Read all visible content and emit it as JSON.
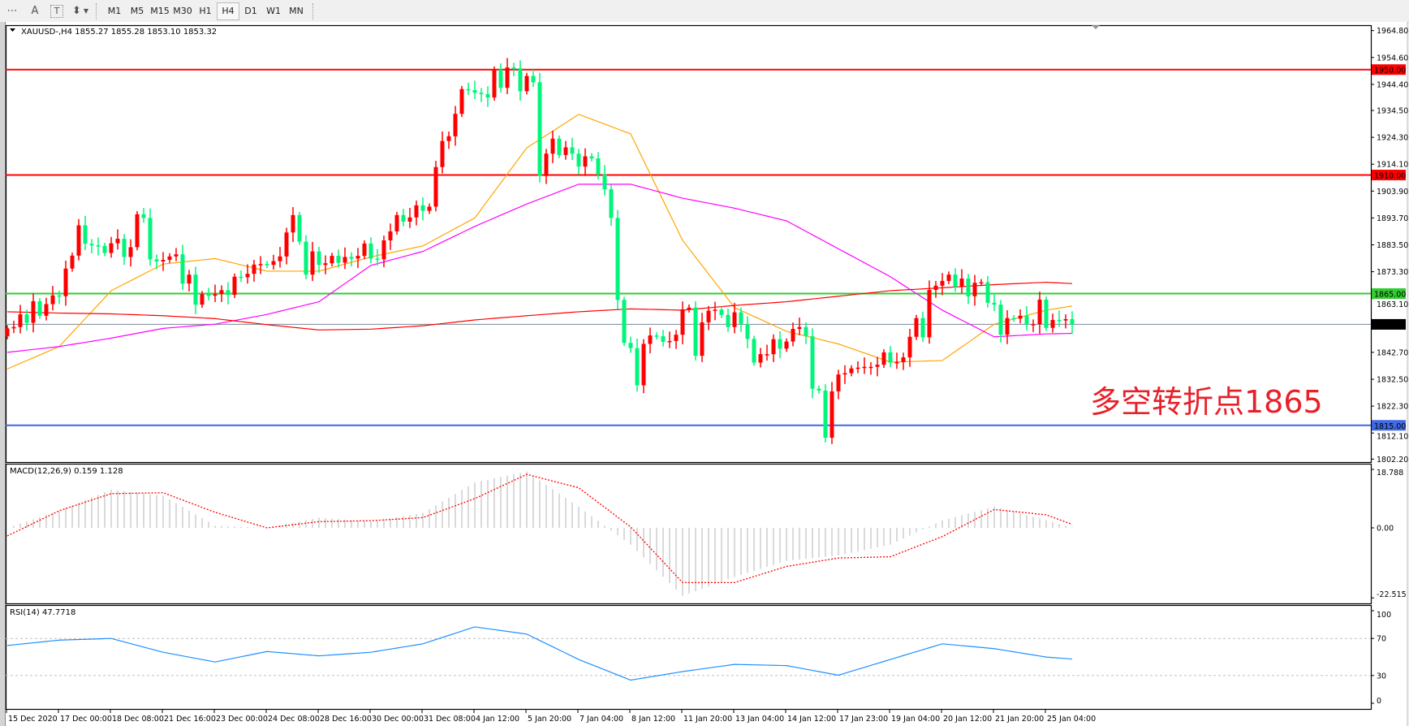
{
  "toolbar": {
    "icons": [
      "grid-properties-icon",
      "text-icon",
      "text-label-icon",
      "arrows-shapes-icon"
    ],
    "icon_glyphs": [
      "⋯",
      "A",
      "T",
      "⬍"
    ],
    "timeframes": [
      "M1",
      "M5",
      "M15",
      "M30",
      "H1",
      "H4",
      "D1",
      "W1",
      "MN"
    ],
    "active_timeframe": "H4"
  },
  "chart_data": [
    {
      "type": "candlestick",
      "symbol_header": "XAUUSD-,H4  1855.27 1855.28 1853.10 1853.32",
      "bull_color": "#ff0000",
      "bear_color": "#00f57a",
      "y_ticks": [
        "1964.80",
        "1954.60",
        "1944.40",
        "1934.50",
        "1924.30",
        "1914.10",
        "1903.90",
        "1893.70",
        "1883.50",
        "1873.30",
        "1863.10",
        "1842.70",
        "1832.50",
        "1822.30",
        "1812.10",
        "1802.20"
      ],
      "ylim": [
        1802.2,
        1964.8
      ],
      "x_ticks": [
        "15 Dec 2020",
        "17 Dec 00:00",
        "18 Dec 08:00",
        "21 Dec 16:00",
        "23 Dec 00:00",
        "24 Dec 08:00",
        "28 Dec 16:00",
        "30 Dec 00:00",
        "31 Dec 08:00",
        "4 Jan 12:00",
        "5 Jan 20:00",
        "7 Jan 04:00",
        "8 Jan 12:00",
        "11 Jan 20:00",
        "13 Jan 04:00",
        "14 Jan 12:00",
        "17 Jan 23:00",
        "19 Jan 04:00",
        "20 Jan 12:00",
        "21 Jan 20:00",
        "25 Jan 04:00"
      ],
      "close": [
        1851.8,
        1852.3,
        1857.1,
        1853.9,
        1862.1,
        1856.6,
        1861.0,
        1864.3,
        1864.0,
        1874.5,
        1879.4,
        1890.9,
        1883.9,
        1883.3,
        1883.1,
        1880.4,
        1884.1,
        1885.8,
        1878.9,
        1882.6,
        1895.1,
        1893.7,
        1878.0,
        1877.2,
        1877.8,
        1879.1,
        1879.9,
        1868.8,
        1872.2,
        1860.8,
        1864.8,
        1864.2,
        1864.8,
        1866.3,
        1864.5,
        1871.4,
        1871.2,
        1872.5,
        1876.0,
        1876.2,
        1875.9,
        1877.3,
        1879.1,
        1888.2,
        1894.8,
        1884.7,
        1872.2,
        1881.0,
        1875.9,
        1876.5,
        1879.3,
        1876.7,
        1878.9,
        1878.3,
        1879.3,
        1884.0,
        1878.3,
        1878.0,
        1885.2,
        1888.6,
        1894.8,
        1892.3,
        1893.9,
        1898.5,
        1896.4,
        1898.0,
        1913.0,
        1922.9,
        1924.7,
        1933.2,
        1942.6,
        1942.2,
        1941.2,
        1940.7,
        1939.4,
        1950.0,
        1943.1,
        1950.8,
        1950.5,
        1941.8,
        1947.6,
        1945.2,
        1909.6,
        1918.1,
        1923.8,
        1917.6,
        1920.5,
        1918.1,
        1913.2,
        1917.1,
        1916.3,
        1910.2,
        1904.6,
        1893.7,
        1862.6,
        1846.3,
        1844.3,
        1830.2,
        1845.9,
        1849.1,
        1848.8,
        1846.7,
        1847.0,
        1849.4,
        1859.0,
        1859.7,
        1841.4,
        1854.1,
        1858.5,
        1858.9,
        1856.9,
        1852.3,
        1857.9,
        1853.4,
        1847.8,
        1838.8,
        1842.0,
        1842.0,
        1847.7,
        1844.1,
        1846.8,
        1851.6,
        1852.3,
        1848.8,
        1828.9,
        1828.2,
        1810.3,
        1827.9,
        1834.3,
        1834.8,
        1836.6,
        1836.9,
        1837.2,
        1837.2,
        1838.0,
        1842.7,
        1838.8,
        1839.0,
        1840.8,
        1848.6,
        1855.7,
        1848.4,
        1866.4,
        1868.0,
        1869.8,
        1872.2,
        1867.5,
        1870.7,
        1864.0,
        1869.1,
        1869.3,
        1861.5,
        1860.8,
        1849.4,
        1855.7,
        1855.5,
        1856.6,
        1853.4,
        1853.4,
        1862.7,
        1852.0,
        1855.0,
        1854.8,
        1855.3,
        1853.32
      ],
      "moving_averages": [
        {
          "color": "#ffa500",
          "values_at_x_ticks_and_last": [
            1836.4,
            1844.9,
            1866.1,
            1876.2,
            1878.3,
            1873.5,
            1873.5,
            1878.9,
            1883.1,
            1893.7,
            1920.3,
            1933.0,
            1925.6,
            1885.2,
            1859.7,
            1850.7,
            1845.9,
            1839.0,
            1839.6,
            1853.4,
            1858.7,
            1860.3
          ]
        },
        {
          "color": "#ff00ff",
          "values_at_x_ticks_and_last": [
            1842.7,
            1844.9,
            1848.1,
            1851.8,
            1853.4,
            1857.1,
            1861.9,
            1875.7,
            1881.0,
            1890.5,
            1899.0,
            1906.5,
            1906.5,
            1901.2,
            1897.4,
            1892.6,
            1882.0,
            1871.4,
            1858.7,
            1848.6,
            1849.7,
            1849.9
          ]
        },
        {
          "color": "#ff0000",
          "values_at_x_ticks_and_last": [
            1858.1,
            1857.6,
            1857.3,
            1856.6,
            1855.5,
            1853.2,
            1851.2,
            1851.5,
            1852.8,
            1855.0,
            1856.6,
            1858.1,
            1859.2,
            1858.7,
            1860.5,
            1861.9,
            1864.0,
            1866.1,
            1867.2,
            1868.4,
            1869.3,
            1868.8
          ]
        }
      ],
      "horizontal_lines": [
        {
          "price": 1950.0,
          "label": "1950.00",
          "color": "#ff0000"
        },
        {
          "price": 1910.0,
          "label": "1910.00",
          "color": "#ff0000"
        },
        {
          "price": 1865.0,
          "label": "1865.00",
          "color": "#32cd32"
        },
        {
          "price": 1815.0,
          "label": "1815.00",
          "color": "#4169e1"
        }
      ],
      "current_price": {
        "price": 1853.32,
        "label": "1853.32",
        "color": "#000000"
      },
      "annotation": "多空转折点1865",
      "annotation_color": "#e8202a",
      "grid": false
    },
    {
      "type": "bar",
      "title": "MACD(12,26,9) 0.159 1.128",
      "y_ticks": [
        "18.788",
        "0.00",
        "-22.515"
      ],
      "ylim": [
        -22.515,
        18.788
      ],
      "histogram_color": "#c0c0c0",
      "signal_color": "#ff0000",
      "histogram_at_x_ticks_and_last": [
        0,
        5.5,
        12.3,
        10.3,
        0.7,
        0,
        3.3,
        2.0,
        4.8,
        14.6,
        18.1,
        6.8,
        -5.4,
        -21.9,
        -15.8,
        -10.6,
        -8.9,
        -5.4,
        2.4,
        6.8,
        2.4,
        0.159
      ],
      "signal_at_x_ticks_and_last": [
        -2.6,
        5.5,
        11.0,
        11.3,
        5.0,
        0,
        2.0,
        2.3,
        3.3,
        9.4,
        17.2,
        12.9,
        0.3,
        -17.6,
        -17.6,
        -12.4,
        -9.7,
        -9.3,
        -2.8,
        5.9,
        4.2,
        1.128
      ]
    },
    {
      "type": "line",
      "title": "RSI(14) 47.7718",
      "y_ticks": [
        "100",
        "70",
        "30",
        "0"
      ],
      "ylim": [
        0,
        100
      ],
      "levels": [
        70,
        30
      ],
      "color": "#1e90ff",
      "values_at_x_ticks_and_last": [
        62.4,
        68.2,
        70.0,
        55.1,
        44.6,
        55.9,
        51.2,
        55.1,
        64.2,
        82.5,
        74.7,
        47.3,
        25.0,
        34.2,
        42.0,
        40.7,
        30.3,
        47.3,
        64.2,
        59.0,
        49.9,
        47.77
      ]
    }
  ]
}
